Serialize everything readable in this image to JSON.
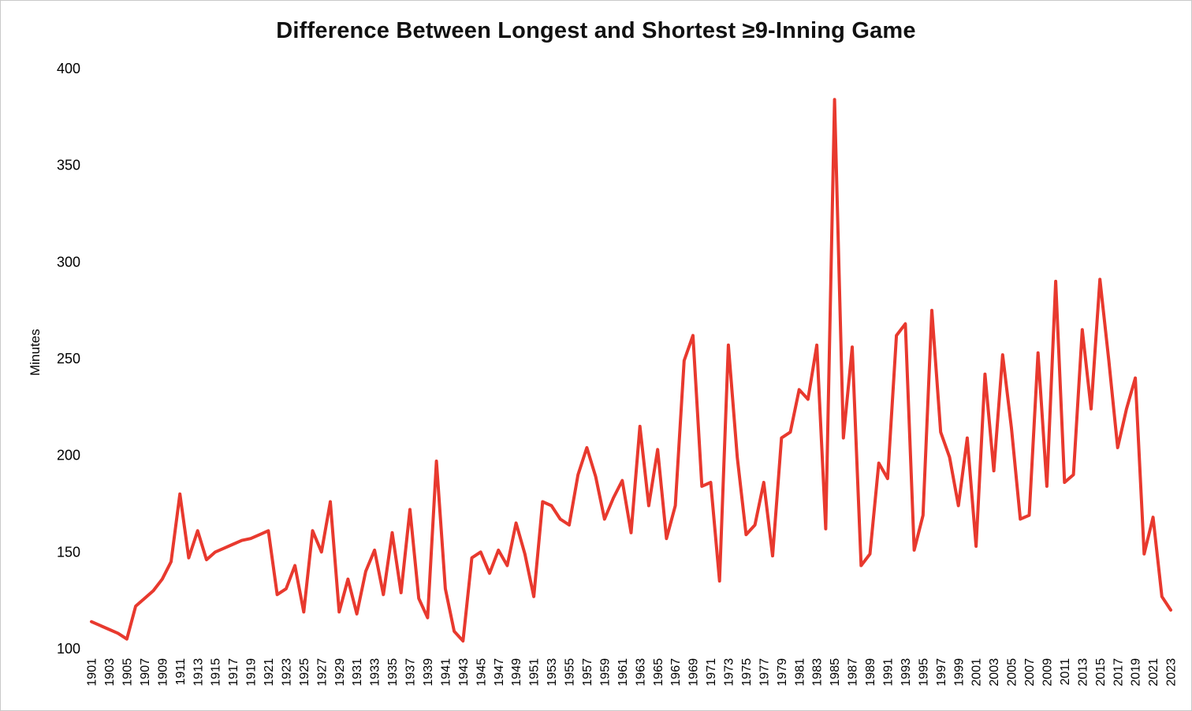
{
  "chart_data": {
    "type": "line",
    "title": "Difference Between Longest and Shortest ≥9-Inning Game",
    "xlabel": "",
    "ylabel": "Minutes",
    "ylim": [
      100,
      400
    ],
    "yticks": [
      100,
      150,
      200,
      250,
      300,
      350,
      400
    ],
    "x_tick_rule": "odd years only, rotated vertical",
    "grid": "off",
    "legend": "none",
    "line_color": "#e8392e",
    "x": [
      1901,
      1902,
      1903,
      1904,
      1905,
      1906,
      1907,
      1908,
      1909,
      1910,
      1911,
      1912,
      1913,
      1914,
      1915,
      1916,
      1917,
      1918,
      1919,
      1920,
      1921,
      1922,
      1923,
      1924,
      1925,
      1926,
      1927,
      1928,
      1929,
      1930,
      1931,
      1932,
      1933,
      1934,
      1935,
      1936,
      1937,
      1938,
      1939,
      1940,
      1941,
      1942,
      1943,
      1944,
      1945,
      1946,
      1947,
      1948,
      1949,
      1950,
      1951,
      1952,
      1953,
      1954,
      1955,
      1956,
      1957,
      1958,
      1959,
      1960,
      1961,
      1962,
      1963,
      1964,
      1965,
      1966,
      1967,
      1968,
      1969,
      1970,
      1971,
      1972,
      1973,
      1974,
      1975,
      1976,
      1977,
      1978,
      1979,
      1980,
      1981,
      1982,
      1983,
      1984,
      1985,
      1986,
      1987,
      1988,
      1989,
      1990,
      1991,
      1992,
      1993,
      1994,
      1995,
      1996,
      1997,
      1998,
      1999,
      2000,
      2001,
      2002,
      2003,
      2004,
      2005,
      2006,
      2007,
      2008,
      2009,
      2010,
      2011,
      2012,
      2013,
      2014,
      2015,
      2016,
      2017,
      2018,
      2019,
      2020,
      2021,
      2022,
      2023
    ],
    "values": [
      114,
      112,
      110,
      108,
      105,
      122,
      126,
      130,
      136,
      145,
      180,
      147,
      161,
      146,
      150,
      152,
      154,
      156,
      157,
      159,
      161,
      128,
      131,
      143,
      119,
      161,
      150,
      176,
      119,
      136,
      118,
      140,
      151,
      128,
      160,
      129,
      172,
      126,
      116,
      197,
      131,
      109,
      104,
      147,
      150,
      139,
      151,
      143,
      165,
      149,
      127,
      176,
      174,
      167,
      164,
      190,
      204,
      189,
      167,
      178,
      187,
      160,
      215,
      174,
      203,
      157,
      174,
      249,
      262,
      184,
      186,
      135,
      257,
      199,
      159,
      164,
      186,
      148,
      209,
      212,
      234,
      229,
      257,
      162,
      384,
      209,
      256,
      143,
      149,
      196,
      188,
      262,
      268,
      151,
      169,
      275,
      212,
      199,
      174,
      209,
      153,
      242,
      192,
      252,
      214,
      167,
      169,
      253,
      184,
      290,
      186,
      190,
      265,
      224,
      291,
      249,
      204,
      224,
      240,
      149,
      168,
      127,
      120
    ]
  }
}
